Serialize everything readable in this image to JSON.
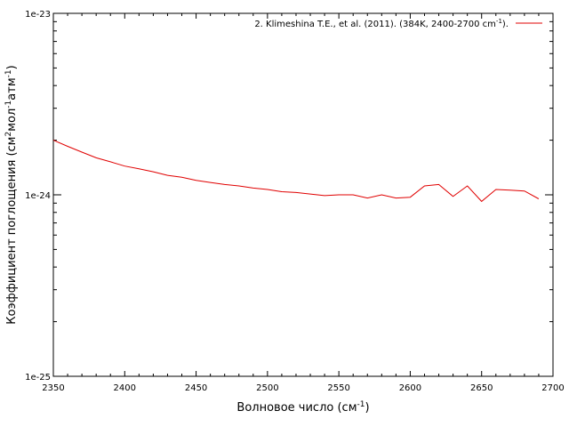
{
  "chart_data": {
    "type": "line",
    "xlabel": "Волновое число (см",
    "xlabel_sup": "-1",
    "xlabel_tail": ")",
    "ylabel_parts": {
      "a": "Коэффициент поглощения (см",
      "a_sup": "2",
      "b": "мол",
      "b_sup": "-1",
      "c": "атм",
      "c_sup": "-1",
      "d": ")"
    },
    "xlim": [
      2350,
      2700
    ],
    "ylim": [
      1e-25,
      1e-23
    ],
    "yscale": "log",
    "grid": false,
    "legend_position": "top-right",
    "x_ticks": [
      2350,
      2400,
      2450,
      2500,
      2550,
      2600,
      2650,
      2700
    ],
    "y_ticks": [
      {
        "value": 1e-25,
        "label": "1e-25"
      },
      {
        "value": 1e-24,
        "label": "1e-24"
      },
      {
        "value": 1e-23,
        "label": "1e-23"
      }
    ],
    "series": [
      {
        "name": "2. Klimeshina T.E., et al. (2011). (384K, 2400-2700 cm",
        "name_sup": "-1",
        "name_tail": ").",
        "color": "#e00000",
        "x": [
          2350,
          2360,
          2370,
          2380,
          2390,
          2400,
          2410,
          2420,
          2430,
          2440,
          2450,
          2460,
          2470,
          2480,
          2490,
          2500,
          2510,
          2520,
          2530,
          2540,
          2550,
          2560,
          2570,
          2580,
          2590,
          2600,
          2610,
          2620,
          2630,
          2640,
          2650,
          2660,
          2670,
          2680,
          2690
        ],
        "y": [
          2e-24,
          1.85e-24,
          1.72e-24,
          1.6e-24,
          1.52e-24,
          1.44e-24,
          1.39e-24,
          1.34e-24,
          1.28e-24,
          1.25e-24,
          1.2e-24,
          1.17e-24,
          1.14e-24,
          1.12e-24,
          1.09e-24,
          1.07e-24,
          1.04e-24,
          1.03e-24,
          1.01e-24,
          9.9e-25,
          1e-24,
          1e-24,
          9.6e-25,
          1e-24,
          9.6e-25,
          9.7e-25,
          1.12e-24,
          1.14e-24,
          9.8e-25,
          1.12e-24,
          9.2e-25,
          1.07e-24,
          1.06e-24,
          1.05e-24,
          9.5e-25
        ]
      }
    ]
  }
}
